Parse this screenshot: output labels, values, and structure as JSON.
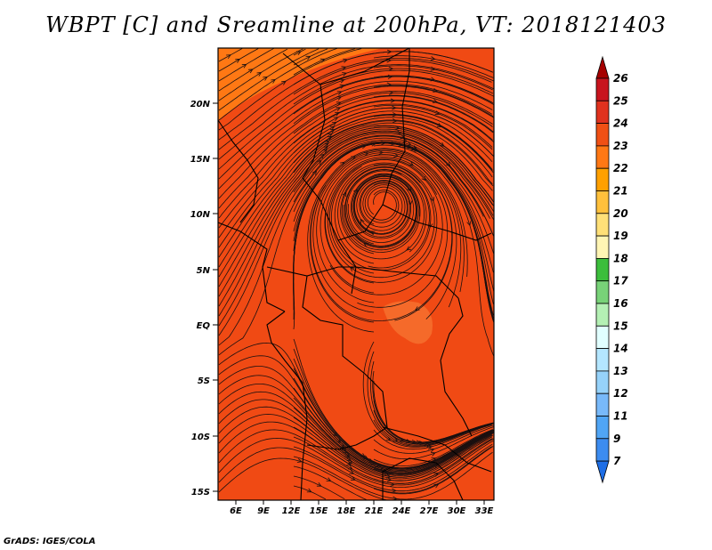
{
  "title": "WBPT [C] and Sreamline at 200hPa, VT: 2018121403",
  "footer": "GrADS: IGES/COLA",
  "map": {
    "lat_labels": [
      "20N",
      "15N",
      "10N",
      "5N",
      "EQ",
      "5S",
      "10S",
      "15S"
    ],
    "lon_labels": [
      "6E",
      "9E",
      "12E",
      "15E",
      "18E",
      "21E",
      "24E",
      "27E",
      "30E",
      "33E"
    ],
    "lon_range": [
      3,
      34
    ],
    "lat_range": [
      -16,
      25
    ]
  },
  "colorbar": {
    "labels": [
      "26",
      "25",
      "24",
      "23",
      "22",
      "21",
      "20",
      "19",
      "18",
      "17",
      "16",
      "15",
      "14",
      "13",
      "12",
      "11",
      "9",
      "7"
    ],
    "colors": [
      "#a50000",
      "#c8141e",
      "#e0321e",
      "#f05014",
      "#ff7814",
      "#ffa000",
      "#ffc03c",
      "#ffe078",
      "#fff5b4",
      "#3cbe3c",
      "#78d278",
      "#b4f0b4",
      "#e1ffff",
      "#b4e6ff",
      "#96d2fa",
      "#78b9fa",
      "#50a5f5",
      "#3c8cf0",
      "#1e6ee6"
    ]
  },
  "colors": {
    "field_main": "#f04a14",
    "field_band_north": "#ff7814",
    "field_patch_light": "#f56a2a",
    "streamline": "#1a1010",
    "border": "#000000"
  }
}
